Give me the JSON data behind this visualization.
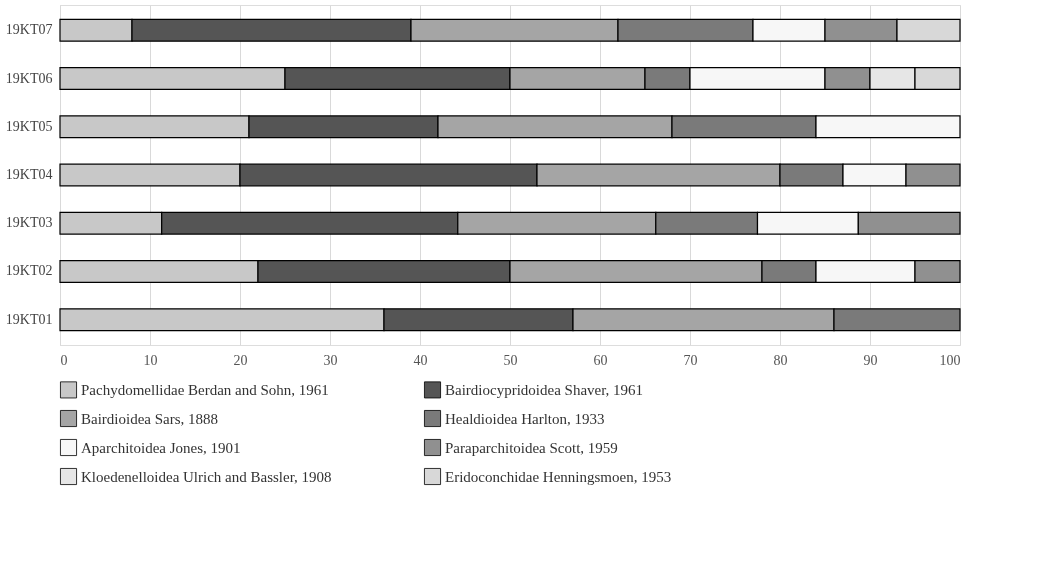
{
  "chart_data": {
    "type": "bar",
    "orientation": "horizontal",
    "stacked": true,
    "categories": [
      "19KT07",
      "19KT06",
      "19KT05",
      "19KT04",
      "19KT03",
      "19KT02",
      "19KT01"
    ],
    "series": [
      {
        "name": "Pachydomellidae Berdan and Sohn, 1961",
        "color": "#c8c8c8",
        "values": [
          8,
          25,
          21,
          20,
          11.3,
          22,
          36
        ]
      },
      {
        "name": "Bairdiocypridoidea Shaver, 1961",
        "color": "#555555",
        "values": [
          31,
          25,
          21,
          33,
          32.9,
          28,
          21
        ]
      },
      {
        "name": "Bairdioidea Sars, 1888",
        "color": "#a5a5a5",
        "values": [
          23,
          15,
          26,
          27,
          22,
          28,
          29
        ]
      },
      {
        "name": "Healdioidea Harlton, 1933",
        "color": "#7a7a7a",
        "values": [
          15,
          5,
          16,
          7,
          11.3,
          6,
          14
        ]
      },
      {
        "name": "Aparchitoidea Jones, 1901",
        "color": "#f7f7f7",
        "values": [
          8,
          15,
          16,
          7,
          11.2,
          11,
          null
        ]
      },
      {
        "name": "Paraparchitoidea Scott, 1959",
        "color": "#909090",
        "values": [
          8,
          5,
          null,
          6,
          11.3,
          5,
          null
        ]
      },
      {
        "name": "Kloedenelloidea Ulrich and Bassler, 1908",
        "color": "#e6e6e6",
        "values": [
          null,
          5,
          null,
          null,
          null,
          null,
          null
        ]
      },
      {
        "name": "Eridoconchidae Henningsmoen, 1953",
        "color": "#d8d8d8",
        "values": [
          7,
          5,
          null,
          null,
          null,
          null,
          null
        ]
      }
    ],
    "xlim": [
      0,
      100
    ],
    "xticks": [
      0,
      10,
      20,
      30,
      40,
      50,
      60,
      70,
      80,
      90,
      100
    ],
    "grid": "x",
    "legend": "bottom"
  }
}
